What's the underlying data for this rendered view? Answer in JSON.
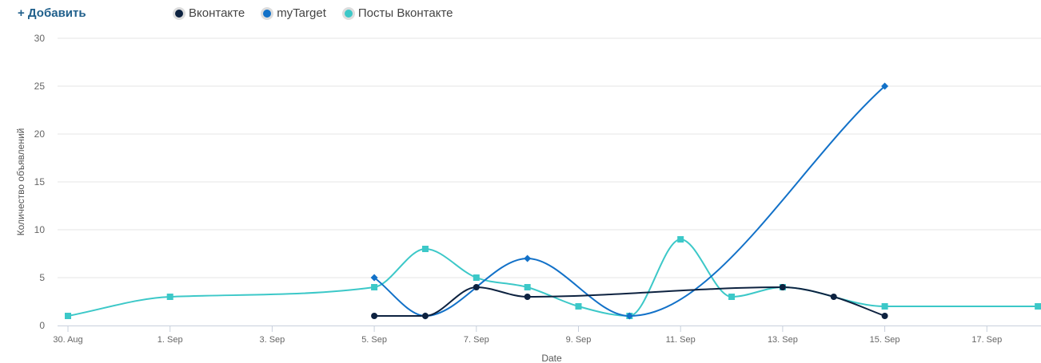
{
  "toolbar": {
    "add_label": "+ Добавить"
  },
  "chart_data": {
    "type": "line",
    "xlabel": "Date",
    "ylabel": "Количество объявлений",
    "ylim": [
      0,
      30
    ],
    "xlim": [
      "2023-08-30",
      "2023-09-18"
    ],
    "y_ticks": [
      0,
      5,
      10,
      15,
      20,
      25,
      30
    ],
    "x_ticks": [
      {
        "date": "2023-08-30",
        "label": "30. Aug"
      },
      {
        "date": "2023-09-01",
        "label": "1. Sep"
      },
      {
        "date": "2023-09-03",
        "label": "3. Sep"
      },
      {
        "date": "2023-09-05",
        "label": "5. Sep"
      },
      {
        "date": "2023-09-07",
        "label": "7. Sep"
      },
      {
        "date": "2023-09-09",
        "label": "9. Sep"
      },
      {
        "date": "2023-09-11",
        "label": "11. Sep"
      },
      {
        "date": "2023-09-13",
        "label": "13. Sep"
      },
      {
        "date": "2023-09-15",
        "label": "15. Sep"
      },
      {
        "date": "2023-09-17",
        "label": "17. Sep"
      }
    ],
    "grid": true,
    "legend": "top-left",
    "series": [
      {
        "name": "Вконтакте",
        "color": "#0d2240",
        "marker": "circle",
        "points": [
          {
            "x": "2023-09-05",
            "y": 1
          },
          {
            "x": "2023-09-06",
            "y": 1
          },
          {
            "x": "2023-09-07",
            "y": 4
          },
          {
            "x": "2023-09-08",
            "y": 3
          },
          {
            "x": "2023-09-13",
            "y": 4
          },
          {
            "x": "2023-09-14",
            "y": 3
          },
          {
            "x": "2023-09-15",
            "y": 1
          }
        ]
      },
      {
        "name": "myTarget",
        "color": "#1271c8",
        "marker": "diamond",
        "points": [
          {
            "x": "2023-09-05",
            "y": 5
          },
          {
            "x": "2023-09-06",
            "y": 1
          },
          {
            "x": "2023-09-08",
            "y": 7
          },
          {
            "x": "2023-09-10",
            "y": 1
          },
          {
            "x": "2023-09-15",
            "y": 25
          }
        ]
      },
      {
        "name": "Посты Вконтакте",
        "color": "#3cc8c8",
        "marker": "square",
        "points": [
          {
            "x": "2023-08-30",
            "y": 1
          },
          {
            "x": "2023-09-01",
            "y": 3
          },
          {
            "x": "2023-09-05",
            "y": 4
          },
          {
            "x": "2023-09-06",
            "y": 8
          },
          {
            "x": "2023-09-07",
            "y": 5
          },
          {
            "x": "2023-09-08",
            "y": 4
          },
          {
            "x": "2023-09-09",
            "y": 2
          },
          {
            "x": "2023-09-10",
            "y": 1
          },
          {
            "x": "2023-09-11",
            "y": 9
          },
          {
            "x": "2023-09-12",
            "y": 3
          },
          {
            "x": "2023-09-13",
            "y": 4
          },
          {
            "x": "2023-09-15",
            "y": 2
          },
          {
            "x": "2023-09-18",
            "y": 2
          }
        ]
      }
    ]
  }
}
